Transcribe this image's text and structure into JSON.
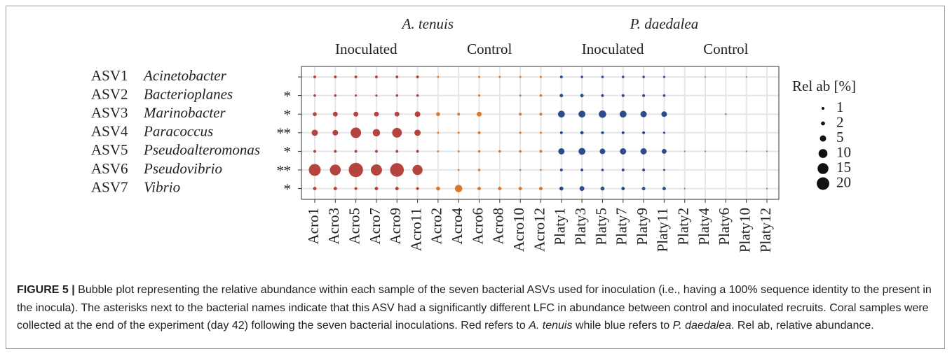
{
  "chart_data": {
    "type": "bubble",
    "species": [
      {
        "name": "A. tenuis",
        "treatments": [
          {
            "name": "Inoculated",
            "color": "#b5443f",
            "samples": [
              "Acro1",
              "Acro3",
              "Acro5",
              "Acro7",
              "Acro9",
              "Acro11"
            ]
          },
          {
            "name": "Control",
            "color": "#d9792e",
            "samples": [
              "Acro2",
              "Acro4",
              "Acro6",
              "Acro8",
              "Acro10",
              "Acro12"
            ]
          }
        ]
      },
      {
        "name": "P. daedalea",
        "treatments": [
          {
            "name": "Inoculated",
            "color": "#2c4c8c",
            "samples": [
              "Platy1",
              "Platy3",
              "Platy5",
              "Platy7",
              "Platy9",
              "Platy11"
            ]
          },
          {
            "name": "Control",
            "color": "#6b8cc7",
            "samples": [
              "Platy2",
              "Platy4",
              "Platy6",
              "Platy10",
              "Platy12"
            ]
          }
        ]
      }
    ],
    "rows": [
      {
        "asv": "ASV1",
        "genus": "Acinetobacter",
        "asterisks": []
      },
      {
        "asv": "ASV2",
        "genus": "Bacterioplanes",
        "asterisks": [
          {
            "text": "*",
            "color": "#2c4c8c"
          }
        ]
      },
      {
        "asv": "ASV3",
        "genus": "Marinobacter",
        "asterisks": [
          {
            "text": "*",
            "color": "#2c4c8c"
          }
        ]
      },
      {
        "asv": "ASV4",
        "genus": "Paracoccus",
        "asterisks": [
          {
            "text": "*",
            "color": "#b5443f"
          },
          {
            "text": "*",
            "color": "#2c4c8c"
          }
        ]
      },
      {
        "asv": "ASV5",
        "genus": "Pseudoalteromonas",
        "asterisks": [
          {
            "text": "*",
            "color": "#2c4c8c"
          }
        ]
      },
      {
        "asv": "ASV6",
        "genus": "Pseudovibrio",
        "asterisks": [
          {
            "text": "*",
            "color": "#b5443f"
          },
          {
            "text": "*",
            "color": "#2c4c8c"
          }
        ]
      },
      {
        "asv": "ASV7",
        "genus": "Vibrio",
        "asterisks": [
          {
            "text": "*",
            "color": "#2c4c8c"
          }
        ]
      }
    ],
    "values": [
      [
        1,
        1,
        1,
        1,
        1,
        1,
        0.5,
        null,
        0.6,
        0.5,
        0.5,
        0.6,
        1,
        0.8,
        0.8,
        0.8,
        0.8,
        0.6,
        null,
        0.3,
        null,
        0.3,
        null
      ],
      [
        0.8,
        0.8,
        0.6,
        0.6,
        0.8,
        0.8,
        null,
        null,
        0.6,
        null,
        0.5,
        0.8,
        1.5,
        1.5,
        1,
        1,
        1,
        0.8,
        null,
        null,
        null,
        null,
        null
      ],
      [
        2,
        3,
        3,
        3,
        3,
        4,
        2,
        1,
        3,
        null,
        1,
        1,
        6,
        6,
        7,
        6,
        5,
        4,
        null,
        null,
        0.4,
        null,
        null
      ],
      [
        5,
        4,
        14,
        7,
        12,
        5,
        0.5,
        0.5,
        1,
        null,
        0.6,
        0.5,
        1,
        1.5,
        1,
        1,
        1,
        0.6,
        null,
        null,
        null,
        null,
        null
      ],
      [
        1,
        1,
        1,
        1,
        1,
        1,
        0.5,
        0.5,
        0.8,
        0.8,
        0.8,
        1,
        5,
        6,
        4,
        5,
        5,
        3,
        0.3,
        0.3,
        null,
        0.3,
        0.3
      ],
      [
        18,
        15,
        26,
        16,
        24,
        13,
        null,
        0.4,
        0.8,
        null,
        0.4,
        0.4,
        1,
        1,
        0.8,
        1,
        1,
        0.5,
        null,
        null,
        null,
        null,
        null
      ],
      [
        1.5,
        1.5,
        1,
        1.5,
        1.5,
        1,
        2,
        7,
        1.5,
        1.5,
        1.5,
        1.5,
        2,
        3,
        2,
        1.5,
        1.5,
        1.5,
        0.3,
        null,
        null,
        null,
        0.3
      ]
    ],
    "grid": true,
    "size_legend": {
      "title": "Rel ab [%]",
      "values": [
        1,
        2,
        5,
        10,
        15,
        20
      ]
    },
    "caption": [
      {
        "text": "FIGURE 5 |",
        "bold": true
      },
      {
        "text": " Bubble plot representing the relative abundance within each sample of the seven bacterial ASVs used for inoculation (i.e., having a 100% sequence identity to the present in the inocula). The asterisks next to the bacterial names indicate that this ASV had a significantly different LFC in abundance between control and inoculated recruits. Coral samples were collected at the end of the experiment (day 42) following the seven bacterial inoculations. Red refers to "
      },
      {
        "text": "A. tenuis",
        "italic": true
      },
      {
        "text": " while blue refers to "
      },
      {
        "text": "P. daedalea",
        "italic": true
      },
      {
        "text": ". Rel ab, relative abundance."
      }
    ]
  }
}
